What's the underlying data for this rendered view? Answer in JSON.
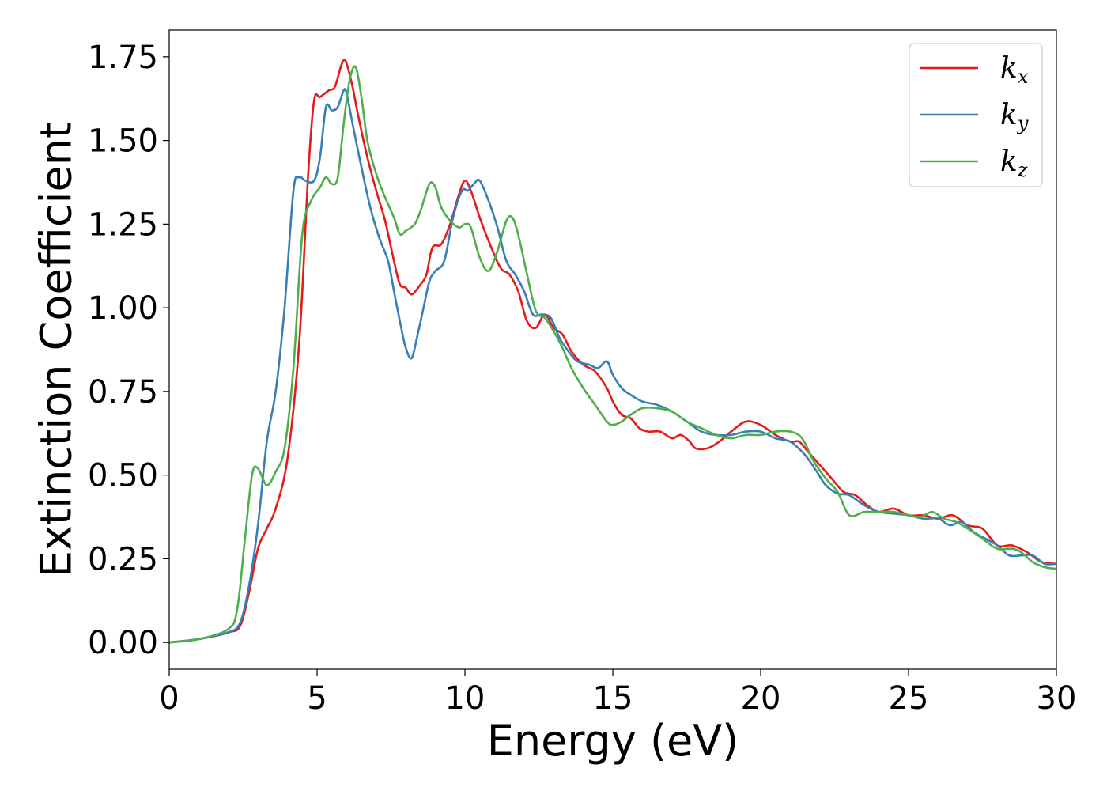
{
  "chart_data": {
    "type": "line",
    "xlabel": "Energy (eV)",
    "ylabel": "Extinction Coefficient",
    "xlim": [
      0,
      30
    ],
    "ylim": [
      -0.08,
      1.83
    ],
    "xticks": [
      0,
      5,
      10,
      15,
      20,
      25,
      30
    ],
    "xtick_labels": [
      "0",
      "5",
      "10",
      "15",
      "20",
      "25",
      "30"
    ],
    "yticks": [
      0.0,
      0.25,
      0.5,
      0.75,
      1.0,
      1.25,
      1.5,
      1.75
    ],
    "ytick_labels": [
      "0.00",
      "0.25",
      "0.50",
      "0.75",
      "1.00",
      "1.25",
      "1.50",
      "1.75"
    ],
    "grid": false,
    "legend_position": "top-right",
    "series": [
      {
        "name": "k",
        "sub": "x",
        "color": "#e41a1c",
        "points": [
          [
            0,
            0
          ],
          [
            1,
            0.01
          ],
          [
            2,
            0.03
          ],
          [
            2.4,
            0.05
          ],
          [
            2.7,
            0.15
          ],
          [
            3.0,
            0.28
          ],
          [
            3.3,
            0.34
          ],
          [
            3.6,
            0.4
          ],
          [
            4.0,
            0.55
          ],
          [
            4.4,
            0.9
          ],
          [
            4.7,
            1.4
          ],
          [
            4.9,
            1.62
          ],
          [
            5.1,
            1.63
          ],
          [
            5.4,
            1.65
          ],
          [
            5.6,
            1.66
          ],
          [
            5.8,
            1.72
          ],
          [
            5.9,
            1.74
          ],
          [
            6.0,
            1.73
          ],
          [
            6.2,
            1.66
          ],
          [
            6.4,
            1.57
          ],
          [
            6.7,
            1.45
          ],
          [
            7.0,
            1.35
          ],
          [
            7.3,
            1.26
          ],
          [
            7.6,
            1.14
          ],
          [
            7.8,
            1.07
          ],
          [
            8.0,
            1.06
          ],
          [
            8.2,
            1.04
          ],
          [
            8.5,
            1.07
          ],
          [
            8.7,
            1.1
          ],
          [
            8.9,
            1.18
          ],
          [
            9.2,
            1.19
          ],
          [
            9.5,
            1.25
          ],
          [
            9.8,
            1.34
          ],
          [
            10.0,
            1.38
          ],
          [
            10.2,
            1.35
          ],
          [
            10.5,
            1.27
          ],
          [
            10.8,
            1.2
          ],
          [
            11.2,
            1.12
          ],
          [
            11.5,
            1.1
          ],
          [
            11.8,
            1.05
          ],
          [
            12.1,
            0.96
          ],
          [
            12.4,
            0.94
          ],
          [
            12.7,
            0.98
          ],
          [
            13.0,
            0.94
          ],
          [
            13.3,
            0.92
          ],
          [
            13.6,
            0.87
          ],
          [
            14.0,
            0.83
          ],
          [
            14.4,
            0.81
          ],
          [
            14.8,
            0.76
          ],
          [
            15.0,
            0.72
          ],
          [
            15.3,
            0.68
          ],
          [
            15.6,
            0.67
          ],
          [
            15.9,
            0.64
          ],
          [
            16.2,
            0.63
          ],
          [
            16.6,
            0.63
          ],
          [
            17.0,
            0.61
          ],
          [
            17.3,
            0.62
          ],
          [
            17.6,
            0.6
          ],
          [
            17.8,
            0.58
          ],
          [
            18.2,
            0.58
          ],
          [
            18.6,
            0.6
          ],
          [
            19.0,
            0.63
          ],
          [
            19.5,
            0.66
          ],
          [
            20.0,
            0.65
          ],
          [
            20.5,
            0.62
          ],
          [
            21.0,
            0.6
          ],
          [
            21.3,
            0.6
          ],
          [
            21.6,
            0.57
          ],
          [
            22.0,
            0.53
          ],
          [
            22.4,
            0.49
          ],
          [
            22.8,
            0.45
          ],
          [
            23.2,
            0.44
          ],
          [
            23.6,
            0.41
          ],
          [
            24.0,
            0.39
          ],
          [
            24.5,
            0.4
          ],
          [
            25.0,
            0.38
          ],
          [
            25.5,
            0.38
          ],
          [
            26.0,
            0.37
          ],
          [
            26.5,
            0.38
          ],
          [
            27.0,
            0.35
          ],
          [
            27.5,
            0.34
          ],
          [
            28.0,
            0.29
          ],
          [
            28.5,
            0.29
          ],
          [
            29.0,
            0.27
          ],
          [
            29.5,
            0.24
          ],
          [
            30.0,
            0.235
          ]
        ]
      },
      {
        "name": "k",
        "sub": "y",
        "color": "#377eb8",
        "points": [
          [
            0,
            0
          ],
          [
            1,
            0.01
          ],
          [
            2,
            0.03
          ],
          [
            2.4,
            0.06
          ],
          [
            2.7,
            0.17
          ],
          [
            3.0,
            0.35
          ],
          [
            3.3,
            0.6
          ],
          [
            3.6,
            0.75
          ],
          [
            3.9,
            1.0
          ],
          [
            4.2,
            1.35
          ],
          [
            4.4,
            1.39
          ],
          [
            4.6,
            1.38
          ],
          [
            4.9,
            1.38
          ],
          [
            5.1,
            1.45
          ],
          [
            5.3,
            1.6
          ],
          [
            5.5,
            1.59
          ],
          [
            5.7,
            1.6
          ],
          [
            5.9,
            1.65
          ],
          [
            6.0,
            1.64
          ],
          [
            6.2,
            1.55
          ],
          [
            6.5,
            1.42
          ],
          [
            6.8,
            1.3
          ],
          [
            7.1,
            1.21
          ],
          [
            7.4,
            1.14
          ],
          [
            7.6,
            1.05
          ],
          [
            7.8,
            0.96
          ],
          [
            8.0,
            0.88
          ],
          [
            8.2,
            0.85
          ],
          [
            8.4,
            0.92
          ],
          [
            8.6,
            1.0
          ],
          [
            8.8,
            1.08
          ],
          [
            9.0,
            1.11
          ],
          [
            9.3,
            1.14
          ],
          [
            9.6,
            1.27
          ],
          [
            9.9,
            1.35
          ],
          [
            10.1,
            1.35
          ],
          [
            10.3,
            1.37
          ],
          [
            10.5,
            1.38
          ],
          [
            10.8,
            1.32
          ],
          [
            11.1,
            1.24
          ],
          [
            11.4,
            1.14
          ],
          [
            11.7,
            1.1
          ],
          [
            12.0,
            1.05
          ],
          [
            12.3,
            0.98
          ],
          [
            12.6,
            0.98
          ],
          [
            12.9,
            0.97
          ],
          [
            13.2,
            0.91
          ],
          [
            13.5,
            0.87
          ],
          [
            13.8,
            0.84
          ],
          [
            14.2,
            0.83
          ],
          [
            14.5,
            0.82
          ],
          [
            14.8,
            0.84
          ],
          [
            15.0,
            0.8
          ],
          [
            15.3,
            0.76
          ],
          [
            15.6,
            0.74
          ],
          [
            16.0,
            0.72
          ],
          [
            16.5,
            0.71
          ],
          [
            17.0,
            0.69
          ],
          [
            17.5,
            0.66
          ],
          [
            18.0,
            0.63
          ],
          [
            18.5,
            0.62
          ],
          [
            19.0,
            0.62
          ],
          [
            19.5,
            0.63
          ],
          [
            20.0,
            0.63
          ],
          [
            20.5,
            0.61
          ],
          [
            21.0,
            0.6
          ],
          [
            21.5,
            0.56
          ],
          [
            21.9,
            0.51
          ],
          [
            22.2,
            0.47
          ],
          [
            22.6,
            0.445
          ],
          [
            23.0,
            0.44
          ],
          [
            23.5,
            0.41
          ],
          [
            24.0,
            0.39
          ],
          [
            24.5,
            0.385
          ],
          [
            25.0,
            0.38
          ],
          [
            25.5,
            0.37
          ],
          [
            26.0,
            0.37
          ],
          [
            26.4,
            0.35
          ],
          [
            26.8,
            0.36
          ],
          [
            27.2,
            0.33
          ],
          [
            27.6,
            0.31
          ],
          [
            28.0,
            0.29
          ],
          [
            28.4,
            0.26
          ],
          [
            28.8,
            0.26
          ],
          [
            29.2,
            0.26
          ],
          [
            29.6,
            0.235
          ],
          [
            30.0,
            0.235
          ]
        ]
      },
      {
        "name": "k",
        "sub": "z",
        "color": "#4daf4a",
        "points": [
          [
            0,
            0
          ],
          [
            1,
            0.01
          ],
          [
            2,
            0.04
          ],
          [
            2.3,
            0.1
          ],
          [
            2.55,
            0.3
          ],
          [
            2.8,
            0.5
          ],
          [
            3.0,
            0.52
          ],
          [
            3.3,
            0.47
          ],
          [
            3.6,
            0.51
          ],
          [
            3.9,
            0.58
          ],
          [
            4.2,
            0.82
          ],
          [
            4.5,
            1.22
          ],
          [
            4.8,
            1.32
          ],
          [
            5.1,
            1.36
          ],
          [
            5.3,
            1.39
          ],
          [
            5.5,
            1.37
          ],
          [
            5.7,
            1.39
          ],
          [
            5.9,
            1.55
          ],
          [
            6.1,
            1.68
          ],
          [
            6.3,
            1.72
          ],
          [
            6.5,
            1.63
          ],
          [
            6.7,
            1.5
          ],
          [
            7.0,
            1.4
          ],
          [
            7.3,
            1.33
          ],
          [
            7.6,
            1.27
          ],
          [
            7.8,
            1.22
          ],
          [
            8.0,
            1.23
          ],
          [
            8.3,
            1.25
          ],
          [
            8.5,
            1.29
          ],
          [
            8.8,
            1.37
          ],
          [
            9.0,
            1.36
          ],
          [
            9.2,
            1.3
          ],
          [
            9.5,
            1.26
          ],
          [
            9.8,
            1.24
          ],
          [
            10.0,
            1.25
          ],
          [
            10.2,
            1.24
          ],
          [
            10.5,
            1.15
          ],
          [
            10.8,
            1.11
          ],
          [
            11.1,
            1.17
          ],
          [
            11.4,
            1.26
          ],
          [
            11.6,
            1.27
          ],
          [
            11.8,
            1.22
          ],
          [
            12.1,
            1.1
          ],
          [
            12.4,
            0.99
          ],
          [
            12.7,
            0.97
          ],
          [
            13.0,
            0.93
          ],
          [
            13.3,
            0.88
          ],
          [
            13.6,
            0.82
          ],
          [
            14.0,
            0.76
          ],
          [
            14.4,
            0.71
          ],
          [
            14.8,
            0.66
          ],
          [
            15.0,
            0.65
          ],
          [
            15.3,
            0.66
          ],
          [
            15.6,
            0.68
          ],
          [
            16.0,
            0.7
          ],
          [
            16.5,
            0.7
          ],
          [
            17.0,
            0.69
          ],
          [
            17.5,
            0.66
          ],
          [
            18.0,
            0.64
          ],
          [
            18.5,
            0.62
          ],
          [
            19.0,
            0.61
          ],
          [
            19.5,
            0.62
          ],
          [
            20.0,
            0.62
          ],
          [
            20.5,
            0.63
          ],
          [
            21.0,
            0.63
          ],
          [
            21.4,
            0.61
          ],
          [
            21.8,
            0.54
          ],
          [
            22.2,
            0.49
          ],
          [
            22.6,
            0.45
          ],
          [
            23.0,
            0.38
          ],
          [
            23.5,
            0.39
          ],
          [
            24.0,
            0.39
          ],
          [
            24.5,
            0.39
          ],
          [
            25.0,
            0.38
          ],
          [
            25.4,
            0.375
          ],
          [
            25.8,
            0.39
          ],
          [
            26.2,
            0.37
          ],
          [
            26.6,
            0.36
          ],
          [
            27.0,
            0.34
          ],
          [
            27.5,
            0.31
          ],
          [
            28.0,
            0.28
          ],
          [
            28.5,
            0.28
          ],
          [
            28.8,
            0.27
          ],
          [
            29.2,
            0.24
          ],
          [
            29.6,
            0.225
          ],
          [
            30.0,
            0.22
          ]
        ]
      }
    ]
  }
}
